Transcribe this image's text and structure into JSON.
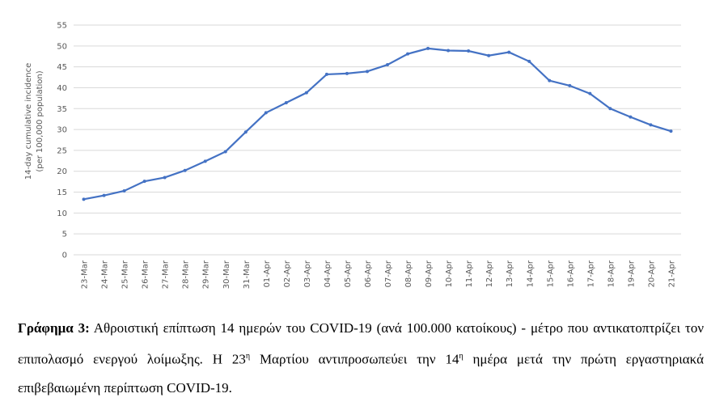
{
  "chart_data": {
    "type": "line",
    "ylabel": [
      "14-day cumulative incidence",
      "(per 100,000 population)"
    ],
    "categories": [
      "23-Mar",
      "24-Mar",
      "25-Mar",
      "26-Mar",
      "27-Mar",
      "28-Mar",
      "29-Mar",
      "30-Mar",
      "31-Mar",
      "01-Apr",
      "02-Apr",
      "03-Apr",
      "04-Apr",
      "05-Apr",
      "06-Apr",
      "07-Apr",
      "08-Apr",
      "09-Apr",
      "10-Apr",
      "11-Apr",
      "12-Apr",
      "13-Apr",
      "14-Apr",
      "15-Apr",
      "16-Apr",
      "17-Apr",
      "18-Apr",
      "19-Apr",
      "20-Apr",
      "21-Apr"
    ],
    "values": [
      13.3,
      14.2,
      15.3,
      17.6,
      18.5,
      20.2,
      22.4,
      24.7,
      29.4,
      34.0,
      36.4,
      38.8,
      43.2,
      43.4,
      43.9,
      45.5,
      48.1,
      49.4,
      48.9,
      48.8,
      47.7,
      48.5,
      46.3,
      41.7,
      40.5,
      38.6,
      35.0,
      33.0,
      31.1,
      29.6
    ],
    "color": "#4472c4",
    "ylim": [
      0,
      55
    ],
    "yticks": [
      0,
      5,
      10,
      15,
      20,
      25,
      30,
      35,
      40,
      45,
      50,
      55
    ],
    "grid": true
  },
  "caption": {
    "label": "Γράφημα 3:",
    "parts": [
      " Αθροιστική επίπτωση 14 ημερών του COVID-19 (ανά 100.000 κατοίκους) - μέτρο που αντικατοπτρίζει τον επιπολασμό ενεργού λοίμωξης. Η 23",
      "η",
      " Μαρτίου αντιπροσωπεύει την 14",
      "η",
      " ημέρα μετά την πρώτη εργαστηριακά επιβεβαιωμένη περίπτωση COVID-19."
    ]
  }
}
